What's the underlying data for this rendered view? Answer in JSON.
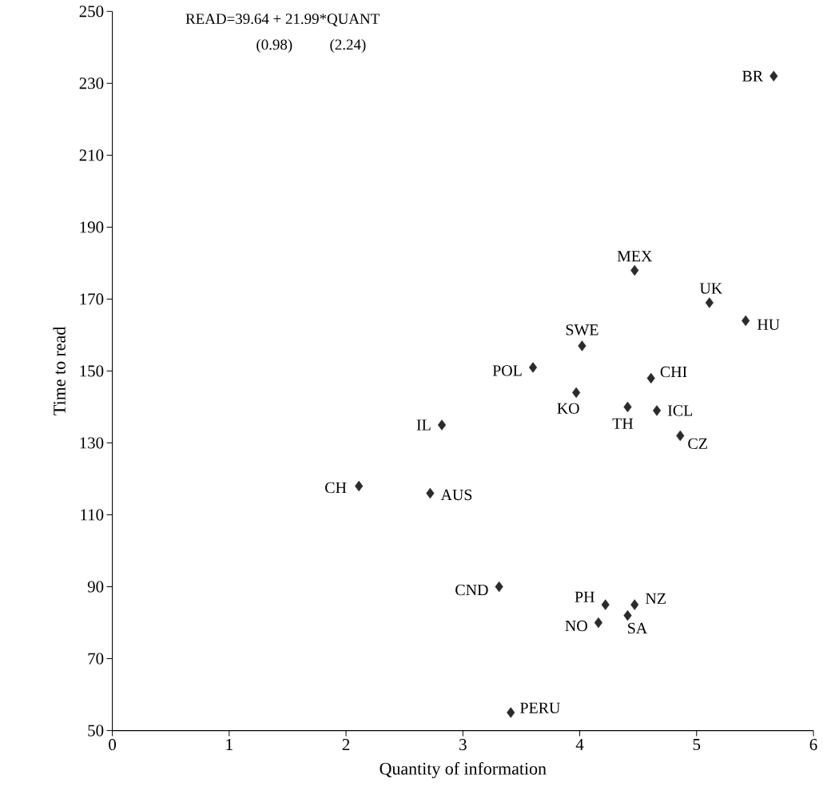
{
  "chart_data": {
    "type": "scatter",
    "xlabel": "Quantity of information",
    "ylabel": "Time to read",
    "x": [
      5.66,
      4.47,
      5.11,
      5.42,
      4.02,
      3.6,
      4.61,
      3.97,
      4.41,
      4.66,
      4.86,
      2.82,
      2.11,
      2.72,
      3.31,
      4.22,
      4.47,
      4.41,
      4.16,
      3.41
    ],
    "series": [
      {
        "color": "#2b2b2b",
        "values": [
          232,
          178,
          169,
          164,
          157,
          151,
          148,
          144,
          140,
          139,
          132,
          135,
          118,
          116,
          90,
          85,
          85,
          82,
          80,
          55
        ]
      }
    ],
    "marker": "diamond",
    "xlim": [
      0,
      6
    ],
    "ylim": [
      50,
      250
    ],
    "xticks": [
      0,
      1,
      2,
      3,
      4,
      5,
      6
    ],
    "yticks": [
      50,
      70,
      90,
      110,
      130,
      150,
      170,
      190,
      210,
      230,
      250
    ],
    "annotations": [
      "READ=39.64 + 21.99*QUANT",
      "(0.98)",
      "(2.24)",
      {
        "text": "BR",
        "x": 5.66,
        "y": 232
      },
      {
        "text": "MEX",
        "x": 4.47,
        "y": 178
      },
      {
        "text": "UK",
        "x": 5.11,
        "y": 169
      },
      {
        "text": "HU",
        "x": 5.42,
        "y": 164
      },
      {
        "text": "SWE",
        "x": 4.02,
        "y": 157
      },
      {
        "text": "POL",
        "x": 3.6,
        "y": 151
      },
      {
        "text": "CHI",
        "x": 4.61,
        "y": 148
      },
      {
        "text": "KO",
        "x": 3.97,
        "y": 144
      },
      {
        "text": "TH",
        "x": 4.41,
        "y": 140
      },
      {
        "text": "ICL",
        "x": 4.66,
        "y": 139
      },
      {
        "text": "CZ",
        "x": 4.86,
        "y": 132
      },
      {
        "text": "IL",
        "x": 2.82,
        "y": 135
      },
      {
        "text": "CH",
        "x": 2.11,
        "y": 118
      },
      {
        "text": "AUS",
        "x": 2.72,
        "y": 116
      },
      {
        "text": "CND",
        "x": 3.31,
        "y": 90
      },
      {
        "text": "PH",
        "x": 4.22,
        "y": 85
      },
      {
        "text": "NZ",
        "x": 4.47,
        "y": 85
      },
      {
        "text": "SA",
        "x": 4.41,
        "y": 82
      },
      {
        "text": "NO",
        "x": 4.16,
        "y": 80
      },
      {
        "text": "PERU",
        "x": 3.41,
        "y": 55
      }
    ]
  }
}
